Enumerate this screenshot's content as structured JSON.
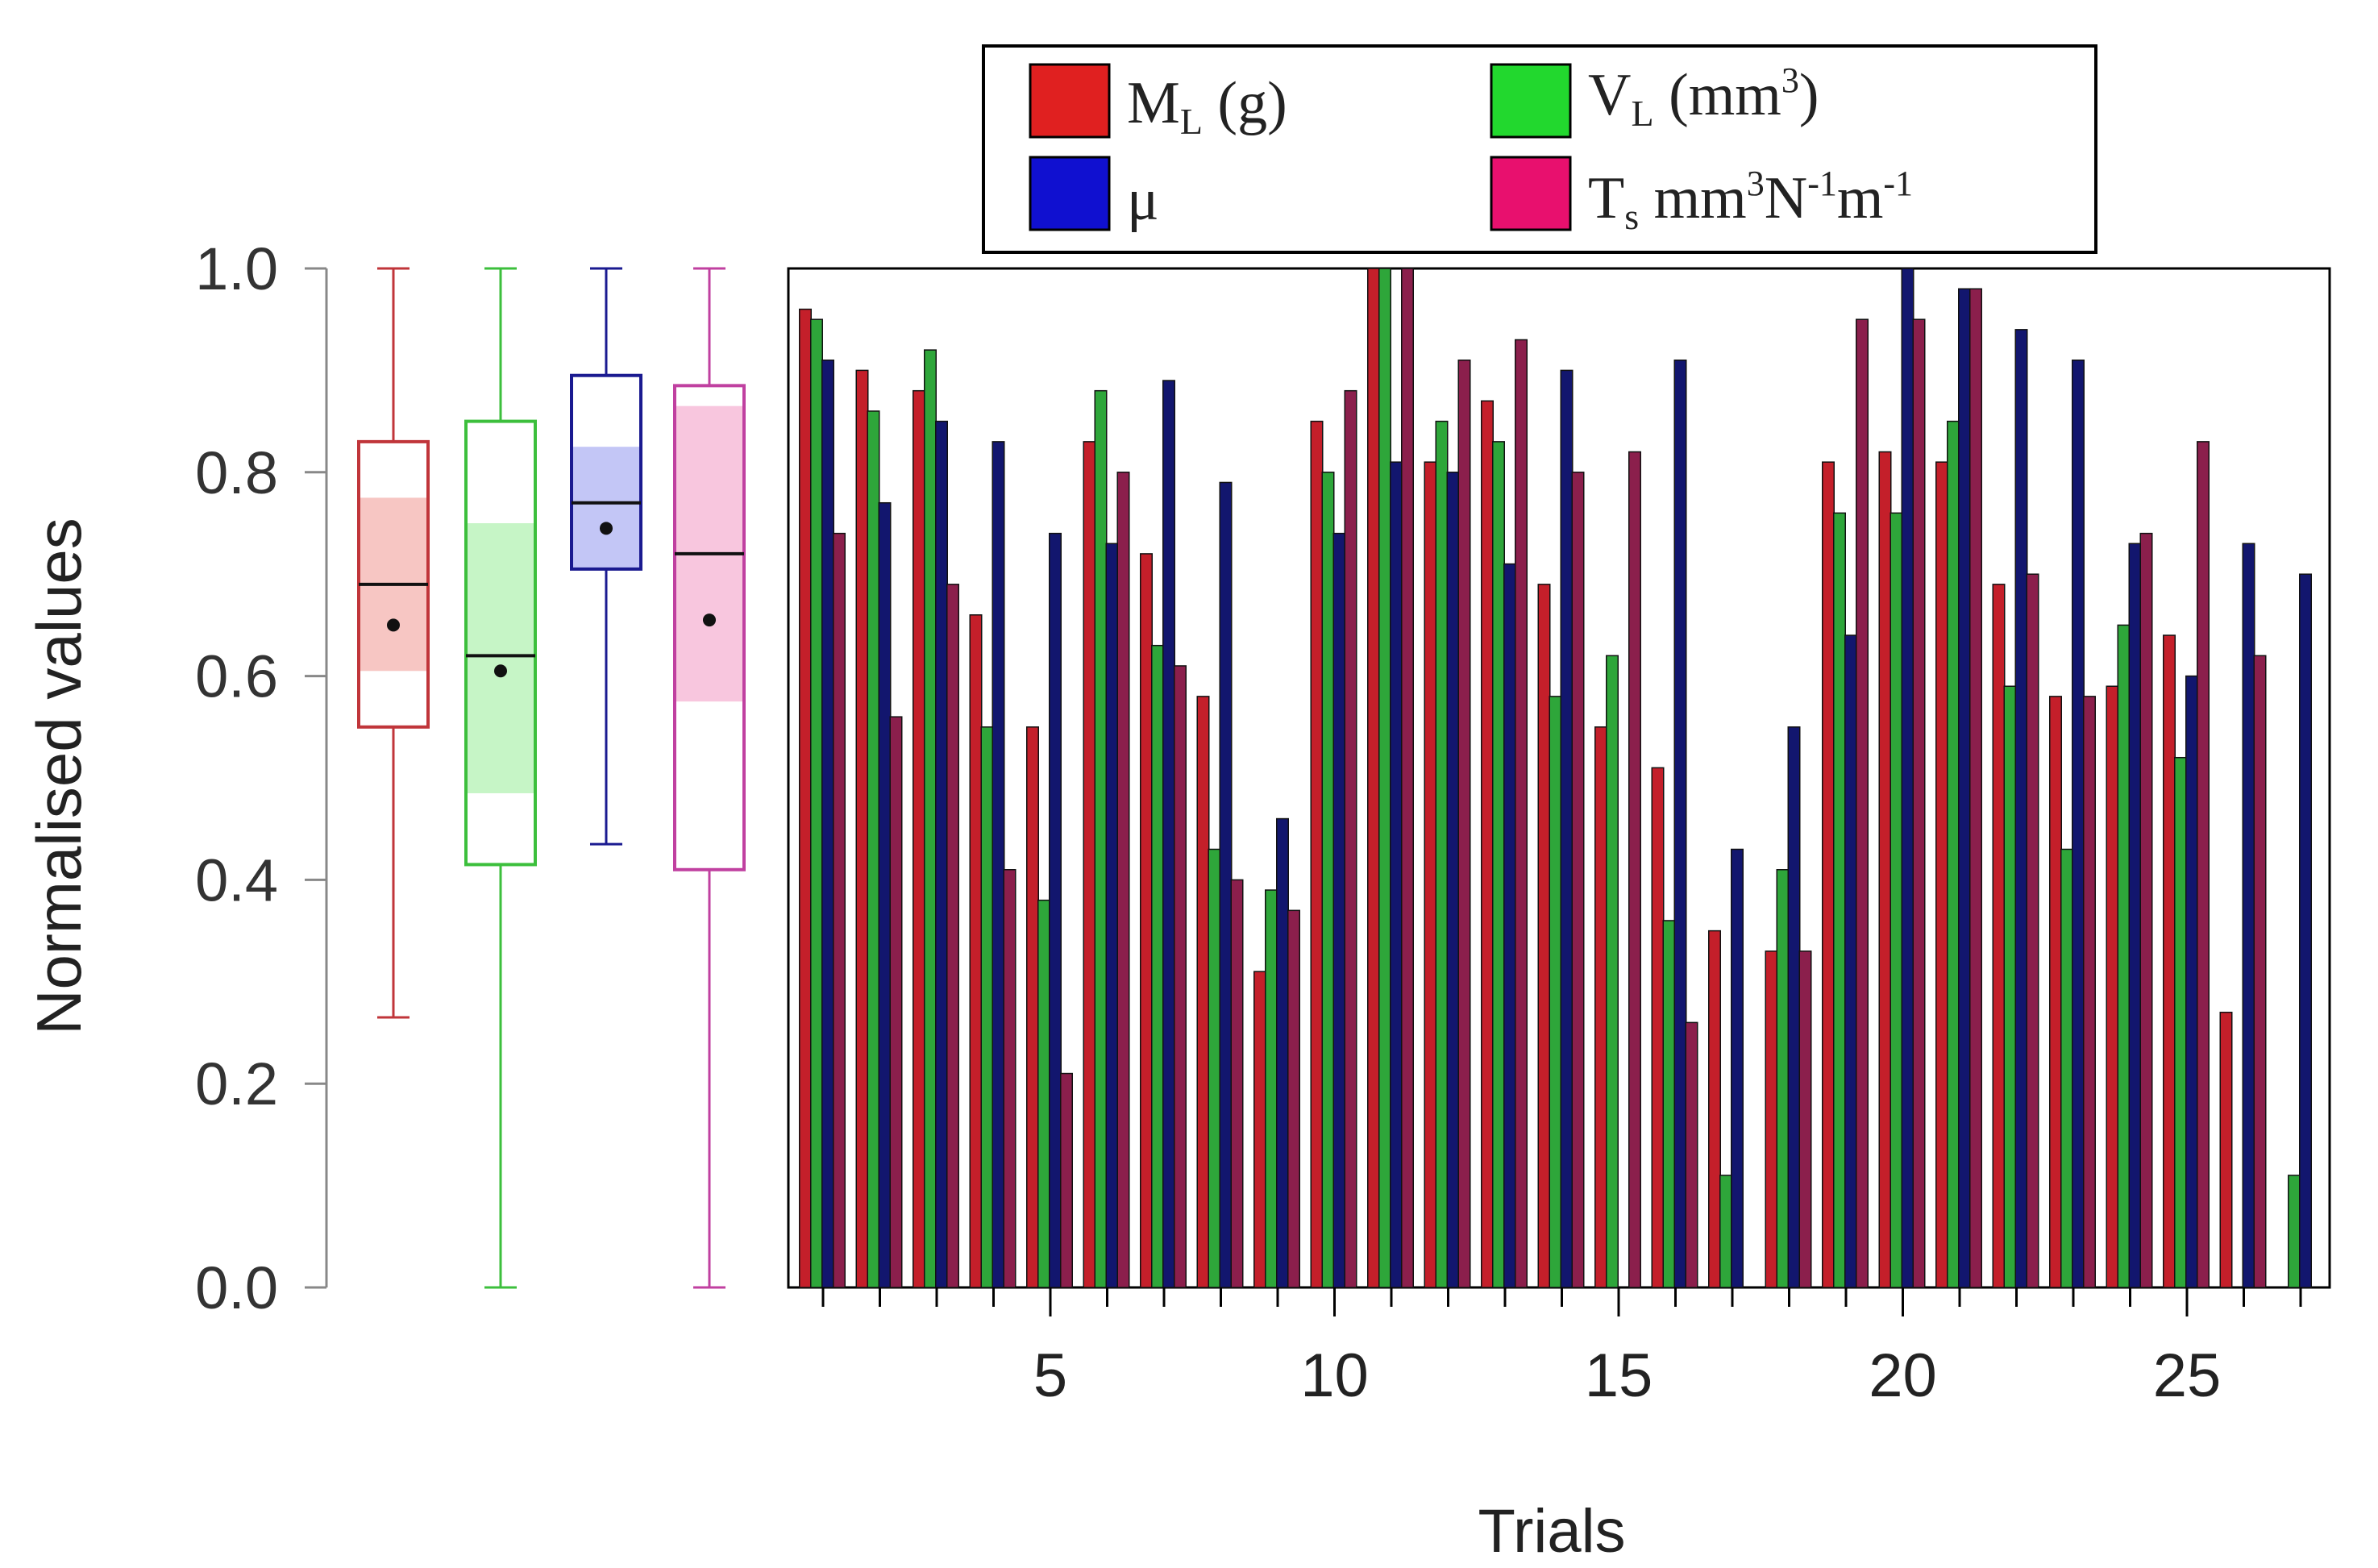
{
  "chart_data": [
    {
      "type": "box",
      "ylabel": "Normalised values",
      "ylim": [
        0,
        1
      ],
      "yticks": [
        "0.0",
        "0.2",
        "0.4",
        "0.6",
        "0.8",
        "1.0"
      ],
      "boxes": [
        {
          "series": "M_L",
          "min": 0.265,
          "q1": 0.55,
          "median": 0.69,
          "mean": 0.65,
          "q3": 0.83,
          "max": 1.0,
          "band": [
            0.605,
            0.775
          ]
        },
        {
          "series": "V_L",
          "min": 0.0,
          "q1": 0.415,
          "median": 0.62,
          "mean": 0.605,
          "q3": 0.85,
          "max": 1.0,
          "band": [
            0.485,
            0.75
          ]
        },
        {
          "series": "mu",
          "min": 0.435,
          "q1": 0.705,
          "median": 0.77,
          "mean": 0.745,
          "q3": 0.895,
          "max": 1.0,
          "band": [
            0.705,
            0.825
          ]
        },
        {
          "series": "T_s",
          "min": 0.0,
          "q1": 0.41,
          "median": 0.72,
          "mean": 0.655,
          "q3": 0.885,
          "max": 1.0,
          "band": [
            0.575,
            0.865
          ]
        }
      ]
    },
    {
      "type": "bar",
      "xlabel": "Trials",
      "xticks": [
        "5",
        "10",
        "15",
        "20",
        "25"
      ],
      "ylim": [
        0,
        1
      ],
      "categories": [
        1,
        2,
        3,
        4,
        5,
        6,
        7,
        8,
        9,
        10,
        11,
        12,
        13,
        14,
        15,
        16,
        17,
        18,
        19,
        20,
        21,
        22,
        23,
        24,
        25,
        26,
        27
      ],
      "series": [
        {
          "name": "M_L",
          "color": "#c41f2a",
          "values": [
            0.96,
            0.9,
            0.88,
            0.66,
            0.55,
            0.83,
            0.72,
            0.58,
            0.31,
            0.85,
            1.0,
            0.81,
            0.87,
            0.69,
            0.55,
            0.51,
            0.35,
            0.33,
            0.81,
            0.82,
            0.81,
            0.69,
            0.58,
            0.59,
            0.64,
            0.27,
            0.0
          ]
        },
        {
          "name": "V_L",
          "color": "#2ea63a",
          "values": [
            0.95,
            0.86,
            0.92,
            0.55,
            0.38,
            0.88,
            0.63,
            0.43,
            0.39,
            0.8,
            1.0,
            0.85,
            0.83,
            0.58,
            0.62,
            0.36,
            0.11,
            0.41,
            0.76,
            0.76,
            0.85,
            0.59,
            0.43,
            0.65,
            0.52,
            0.0,
            0.11
          ]
        },
        {
          "name": "mu",
          "color": "#12166e",
          "values": [
            0.91,
            0.77,
            0.85,
            0.83,
            0.74,
            0.73,
            0.89,
            0.79,
            0.46,
            0.74,
            0.81,
            0.8,
            0.71,
            0.9,
            0.0,
            0.91,
            0.43,
            0.55,
            0.64,
            1.0,
            0.98,
            0.94,
            0.91,
            0.73,
            0.6,
            0.73,
            0.7
          ]
        },
        {
          "name": "T_s",
          "color": "#8b1f4c",
          "values": [
            0.74,
            0.56,
            0.69,
            0.41,
            0.21,
            0.8,
            0.61,
            0.4,
            0.37,
            0.88,
            1.0,
            0.91,
            0.93,
            0.8,
            0.82,
            0.26,
            0.0,
            0.33,
            0.95,
            0.95,
            0.98,
            0.7,
            0.58,
            0.74,
            0.83,
            0.62,
            0.0
          ]
        }
      ]
    }
  ],
  "legend": {
    "items": [
      {
        "key": "M_L",
        "main": "M",
        "sub": "L",
        "rest": " (g)",
        "color": "#e02020"
      },
      {
        "key": "V_L",
        "main": "V",
        "sub": "L",
        "rest": " (mm",
        "sup": "3",
        "tail": ")",
        "color": "#22d82e"
      },
      {
        "key": "mu",
        "main": "μ",
        "color": "#1010d0"
      },
      {
        "key": "T_s",
        "main": "T",
        "sub": "s",
        "rest": " mm",
        "sup": "3",
        "mid": "N",
        "sup2": "-1",
        "mid2": "m",
        "sup3": "-1",
        "color": "#e8106e"
      }
    ]
  }
}
